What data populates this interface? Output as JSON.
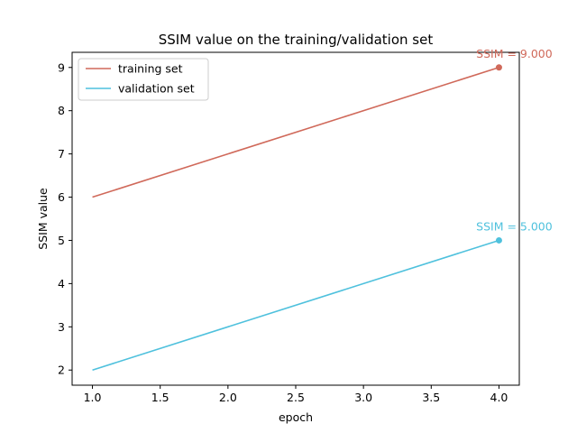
{
  "chart_data": {
    "type": "line",
    "title": "SSIM value on the training/validation set",
    "xlabel": "epoch",
    "ylabel": "SSIM value",
    "xlim": [
      0.85,
      4.15
    ],
    "ylim": [
      1.65,
      9.35
    ],
    "xticks": [
      1.0,
      1.5,
      2.0,
      2.5,
      3.0,
      3.5,
      4.0
    ],
    "xtick_labels": [
      "1.0",
      "1.5",
      "2.0",
      "2.5",
      "3.0",
      "3.5",
      "4.0"
    ],
    "yticks": [
      2,
      3,
      4,
      5,
      6,
      7,
      8,
      9
    ],
    "ytick_labels": [
      "2",
      "3",
      "4",
      "5",
      "6",
      "7",
      "8",
      "9"
    ],
    "grid": false,
    "legend_position": "top-left",
    "series": [
      {
        "name": "training set",
        "color": "#d0695a",
        "x": [
          1.0,
          4.0
        ],
        "y": [
          6,
          9
        ],
        "marker_point": [
          4.0,
          9
        ],
        "annotation": "SSIM = 9.000"
      },
      {
        "name": "validation set",
        "color": "#4fc1dd",
        "x": [
          1.0,
          4.0
        ],
        "y": [
          2,
          5
        ],
        "marker_point": [
          4.0,
          5
        ],
        "annotation": "SSIM = 5.000"
      }
    ]
  }
}
